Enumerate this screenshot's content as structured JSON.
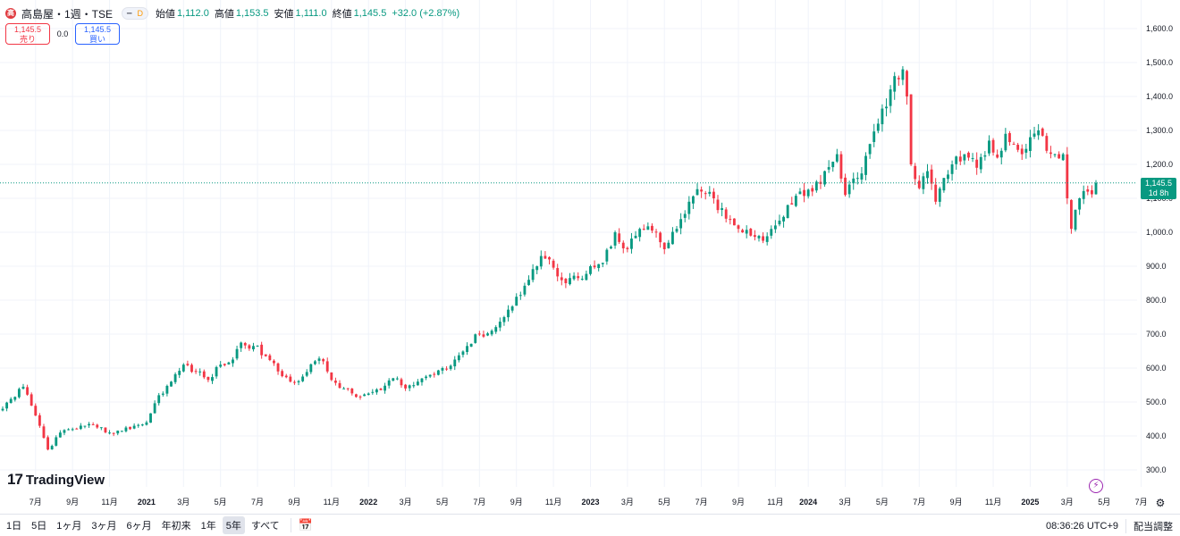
{
  "legend": {
    "logo_text": "高",
    "symbol_title": "高島屋・1週・TSE",
    "badge_dash": "━",
    "badge_interval": "D",
    "open_label": "始値",
    "open_value": "1,112.0",
    "high_label": "高値",
    "high_value": "1,153.5",
    "low_label": "安値",
    "low_value": "1,111.0",
    "close_label": "終値",
    "close_value": "1,145.5",
    "change_value": "+32.0 (+2.87%)"
  },
  "trade": {
    "sell_price": "1,145.5",
    "sell_label": "売り",
    "spread": "0.0",
    "buy_price": "1,145.5",
    "buy_label": "買い"
  },
  "price_tag": {
    "price": "1,145.5",
    "countdown": "1d 8h"
  },
  "watermark": {
    "logo": "17",
    "text": "TradingView"
  },
  "bottom_bar": {
    "ranges": [
      "1日",
      "5日",
      "1ヶ月",
      "3ヶ月",
      "6ヶ月",
      "年初来",
      "1年",
      "5年",
      "すべて"
    ],
    "active_range": "5年",
    "clock": "08:36:26 UTC+9",
    "adjust_label": "配当調整"
  },
  "colors": {
    "up": "#089981",
    "down": "#f23645",
    "grid": "#f0f3fa",
    "last_line": "#089981"
  },
  "icons": {
    "lightning": "lightning-icon",
    "settings": "gear-icon",
    "calendar": "calendar-icon"
  },
  "chart_data": {
    "type": "candlestick",
    "ylim": [
      270,
      1640
    ],
    "y_ticks": [
      300,
      400,
      500,
      600,
      700,
      800,
      900,
      1000,
      1100,
      1200,
      1300,
      1400,
      1500,
      1600
    ],
    "y_tick_labels": [
      "300.0",
      "400.0",
      "500.0",
      "600.0",
      "700.0",
      "800.0",
      "900.0",
      "1,000.0",
      "1,100.0",
      "1,200.0",
      "1,300.0",
      "1,400.0",
      "1,500.0",
      "1,600.0"
    ],
    "x_ticks": [
      {
        "label": "7月",
        "index": 8,
        "bold": false
      },
      {
        "label": "9月",
        "index": 17,
        "bold": false
      },
      {
        "label": "11月",
        "index": 26,
        "bold": false
      },
      {
        "label": "2021",
        "index": 35,
        "bold": true
      },
      {
        "label": "3月",
        "index": 44,
        "bold": false
      },
      {
        "label": "5月",
        "index": 53,
        "bold": false
      },
      {
        "label": "7月",
        "index": 62,
        "bold": false
      },
      {
        "label": "9月",
        "index": 71,
        "bold": false
      },
      {
        "label": "11月",
        "index": 80,
        "bold": false
      },
      {
        "label": "2022",
        "index": 89,
        "bold": true
      },
      {
        "label": "3月",
        "index": 98,
        "bold": false
      },
      {
        "label": "5月",
        "index": 107,
        "bold": false
      },
      {
        "label": "7月",
        "index": 116,
        "bold": false
      },
      {
        "label": "9月",
        "index": 125,
        "bold": false
      },
      {
        "label": "11月",
        "index": 134,
        "bold": false
      },
      {
        "label": "2023",
        "index": 143,
        "bold": true
      },
      {
        "label": "3月",
        "index": 152,
        "bold": false
      },
      {
        "label": "5月",
        "index": 161,
        "bold": false
      },
      {
        "label": "7月",
        "index": 170,
        "bold": false
      },
      {
        "label": "9月",
        "index": 179,
        "bold": false
      },
      {
        "label": "11月",
        "index": 188,
        "bold": false
      },
      {
        "label": "2024",
        "index": 196,
        "bold": true
      },
      {
        "label": "3月",
        "index": 205,
        "bold": false
      },
      {
        "label": "5月",
        "index": 214,
        "bold": false
      },
      {
        "label": "7月",
        "index": 223,
        "bold": false
      },
      {
        "label": "9月",
        "index": 232,
        "bold": false
      },
      {
        "label": "11月",
        "index": 241,
        "bold": false
      },
      {
        "label": "2025",
        "index": 250,
        "bold": true
      },
      {
        "label": "3月",
        "index": 259,
        "bold": false
      },
      {
        "label": "5月",
        "index": 268,
        "bold": false
      },
      {
        "label": "7月",
        "index": 277,
        "bold": false
      }
    ],
    "close_anchors": [
      [
        0,
        480
      ],
      [
        3,
        515
      ],
      [
        5,
        545
      ],
      [
        8,
        460
      ],
      [
        11,
        360
      ],
      [
        14,
        410
      ],
      [
        17,
        420
      ],
      [
        20,
        430
      ],
      [
        23,
        425
      ],
      [
        26,
        410
      ],
      [
        29,
        415
      ],
      [
        32,
        430
      ],
      [
        35,
        440
      ],
      [
        38,
        520
      ],
      [
        41,
        560
      ],
      [
        44,
        610
      ],
      [
        47,
        590
      ],
      [
        50,
        565
      ],
      [
        53,
        610
      ],
      [
        56,
        625
      ],
      [
        58,
        675
      ],
      [
        61,
        665
      ],
      [
        64,
        635
      ],
      [
        67,
        590
      ],
      [
        70,
        560
      ],
      [
        73,
        575
      ],
      [
        76,
        620
      ],
      [
        78,
        620
      ],
      [
        80,
        565
      ],
      [
        83,
        540
      ],
      [
        86,
        515
      ],
      [
        89,
        525
      ],
      [
        92,
        535
      ],
      [
        95,
        570
      ],
      [
        98,
        540
      ],
      [
        101,
        560
      ],
      [
        104,
        580
      ],
      [
        107,
        600
      ],
      [
        110,
        625
      ],
      [
        113,
        665
      ],
      [
        116,
        700
      ],
      [
        119,
        710
      ],
      [
        122,
        750
      ],
      [
        125,
        810
      ],
      [
        128,
        860
      ],
      [
        131,
        930
      ],
      [
        133,
        920
      ],
      [
        135,
        870
      ],
      [
        137,
        850
      ],
      [
        140,
        865
      ],
      [
        143,
        900
      ],
      [
        146,
        910
      ],
      [
        149,
        1000
      ],
      [
        152,
        950
      ],
      [
        155,
        1010
      ],
      [
        158,
        1005
      ],
      [
        161,
        950
      ],
      [
        164,
        1010
      ],
      [
        167,
        1090
      ],
      [
        170,
        1120
      ],
      [
        173,
        1100
      ],
      [
        176,
        1040
      ],
      [
        179,
        1010
      ],
      [
        182,
        990
      ],
      [
        185,
        975
      ],
      [
        188,
        1020
      ],
      [
        191,
        1080
      ],
      [
        194,
        1120
      ],
      [
        197,
        1120
      ],
      [
        200,
        1180
      ],
      [
        203,
        1230
      ],
      [
        205,
        1110
      ],
      [
        208,
        1160
      ],
      [
        211,
        1260
      ],
      [
        213,
        1320
      ],
      [
        215,
        1370
      ],
      [
        217,
        1460
      ],
      [
        219,
        1480
      ],
      [
        220,
        1400
      ],
      [
        221,
        1200
      ],
      [
        223,
        1130
      ],
      [
        225,
        1180
      ],
      [
        227,
        1090
      ],
      [
        229,
        1160
      ],
      [
        231,
        1200
      ],
      [
        234,
        1230
      ],
      [
        237,
        1190
      ],
      [
        240,
        1270
      ],
      [
        242,
        1220
      ],
      [
        244,
        1290
      ],
      [
        246,
        1260
      ],
      [
        248,
        1230
      ],
      [
        250,
        1280
      ],
      [
        252,
        1300
      ],
      [
        254,
        1240
      ],
      [
        256,
        1230
      ],
      [
        258,
        1230
      ],
      [
        259,
        1100
      ],
      [
        260,
        1010
      ],
      [
        262,
        1100
      ],
      [
        265,
        1112
      ],
      [
        266,
        1145.5
      ]
    ],
    "candle_count": 267,
    "last_price": 1145.5
  }
}
